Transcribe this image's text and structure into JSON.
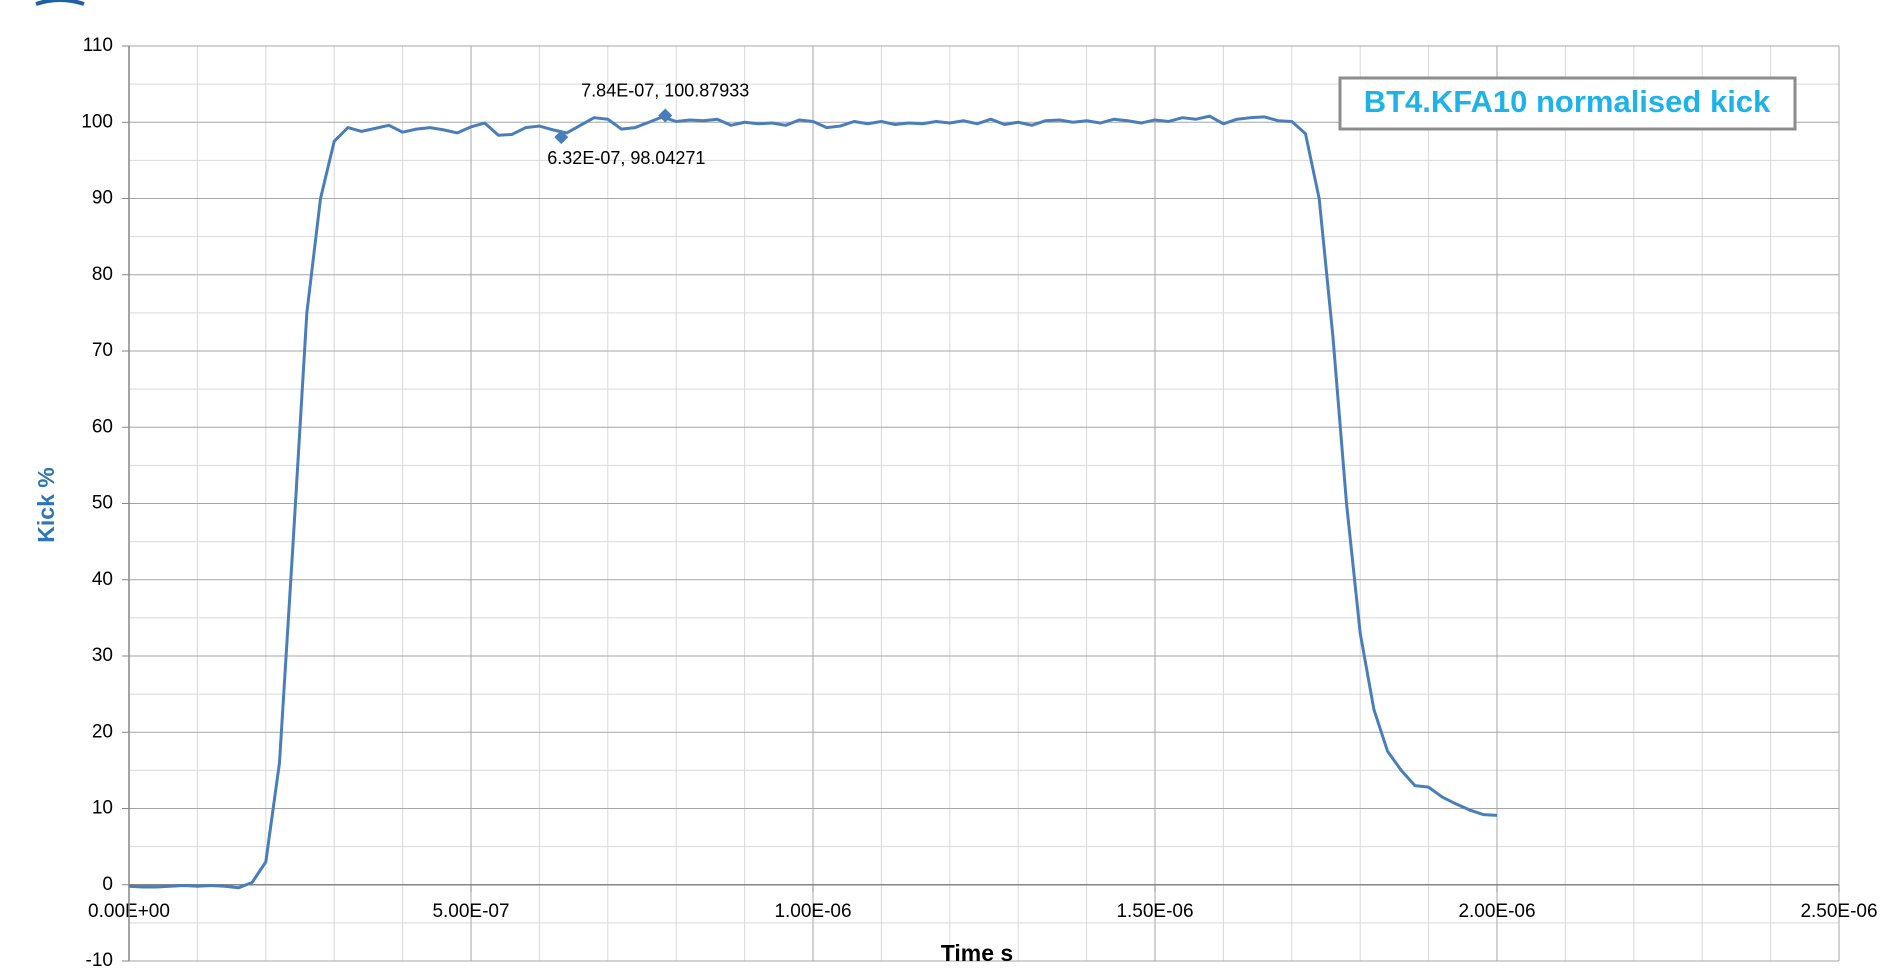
{
  "chart_data": {
    "type": "line",
    "title": "BT4.KFA10 normalised kick",
    "xlabel": "Time s",
    "ylabel": "Kick %",
    "x": [
      0,
      2e-08,
      4e-08,
      6e-08,
      8e-08,
      1e-07,
      1.2e-07,
      1.4e-07,
      1.6e-07,
      1.8e-07,
      2e-07,
      2.2e-07,
      2.4e-07,
      2.6e-07,
      2.8e-07,
      3e-07,
      3.2e-07,
      3.4e-07,
      3.6e-07,
      3.8e-07,
      4e-07,
      4.2e-07,
      4.4e-07,
      4.6e-07,
      4.8e-07,
      5e-07,
      5.2e-07,
      5.4e-07,
      5.6e-07,
      5.8e-07,
      6e-07,
      6.2e-07,
      6.4e-07,
      6.6e-07,
      6.8e-07,
      7e-07,
      7.2e-07,
      7.4e-07,
      7.6e-07,
      7.8e-07,
      8e-07,
      8.2e-07,
      8.4e-07,
      8.6e-07,
      8.8e-07,
      9e-07,
      9.2e-07,
      9.4e-07,
      9.6e-07,
      9.8e-07,
      1e-06,
      1.02e-06,
      1.04e-06,
      1.06e-06,
      1.08e-06,
      1.1e-06,
      1.12e-06,
      1.14e-06,
      1.16e-06,
      1.18e-06,
      1.2e-06,
      1.22e-06,
      1.24e-06,
      1.26e-06,
      1.28e-06,
      1.3e-06,
      1.32e-06,
      1.34e-06,
      1.36e-06,
      1.38e-06,
      1.4e-06,
      1.42e-06,
      1.44e-06,
      1.46e-06,
      1.48e-06,
      1.5e-06,
      1.52e-06,
      1.54e-06,
      1.56e-06,
      1.58e-06,
      1.6e-06,
      1.62e-06,
      1.64e-06,
      1.66e-06,
      1.68e-06,
      1.7e-06,
      1.72e-06,
      1.74e-06,
      1.76e-06,
      1.78e-06,
      1.8e-06,
      1.82e-06,
      1.84e-06,
      1.86e-06,
      1.88e-06,
      1.9e-06,
      1.92e-06,
      1.94e-06,
      1.96e-06,
      1.98e-06,
      2e-06
    ],
    "series": [
      {
        "color": "#4a7ebb",
        "values": [
          -0.2,
          -0.3,
          -0.3,
          -0.2,
          -0.1,
          -0.2,
          -0.1,
          -0.2,
          -0.4,
          0.3,
          3,
          16,
          45,
          75,
          90,
          97.5,
          99.3,
          98.8,
          99.2,
          99.6,
          98.7,
          99.1,
          99.3,
          99.0,
          98.6,
          99.4,
          99.9,
          98.3,
          98.4,
          99.3,
          99.5,
          99.0,
          98.6,
          99.6,
          100.6,
          100.4,
          99.1,
          99.3,
          100.0,
          100.7,
          100.1,
          100.3,
          100.2,
          100.4,
          99.6,
          100.0,
          99.8,
          99.9,
          99.6,
          100.3,
          100.1,
          99.3,
          99.5,
          100.1,
          99.8,
          100.1,
          99.7,
          99.9,
          99.8,
          100.1,
          99.9,
          100.2,
          99.8,
          100.4,
          99.7,
          100.0,
          99.6,
          100.2,
          100.3,
          100.0,
          100.2,
          99.9,
          100.4,
          100.2,
          99.9,
          100.3,
          100.1,
          100.6,
          100.4,
          100.8,
          99.8,
          100.4,
          100.6,
          100.7,
          100.2,
          100.1,
          98.5,
          90,
          72,
          50,
          33,
          23,
          17.5,
          15,
          13,
          12.8,
          11.5,
          10.6,
          9.8,
          9.2,
          9.1
        ]
      }
    ],
    "annotations": [
      {
        "x": 7.84e-07,
        "y": 100.87933,
        "label": "7.84E-07, 100.87933"
      },
      {
        "x": 6.32e-07,
        "y": 98.04271,
        "label": "6.32E-07, 98.04271"
      }
    ],
    "xlim": [
      0,
      2.5e-06
    ],
    "xticks": [
      {
        "value": 0,
        "label": "0.00E+00"
      },
      {
        "value": 5e-07,
        "label": "5.00E-07"
      },
      {
        "value": 1e-06,
        "label": "1.00E-06"
      },
      {
        "value": 1.5e-06,
        "label": "1.50E-06"
      },
      {
        "value": 2e-06,
        "label": "2.00E-06"
      },
      {
        "value": 2.5e-06,
        "label": "2.50E-06"
      }
    ],
    "ylim": [
      -10,
      110
    ],
    "yticks": [
      -10,
      0,
      10,
      20,
      30,
      40,
      50,
      60,
      70,
      80,
      90,
      100,
      110
    ],
    "grid": true,
    "minor_grid": {
      "x_divisions": 5,
      "y_divisions": 2
    }
  }
}
